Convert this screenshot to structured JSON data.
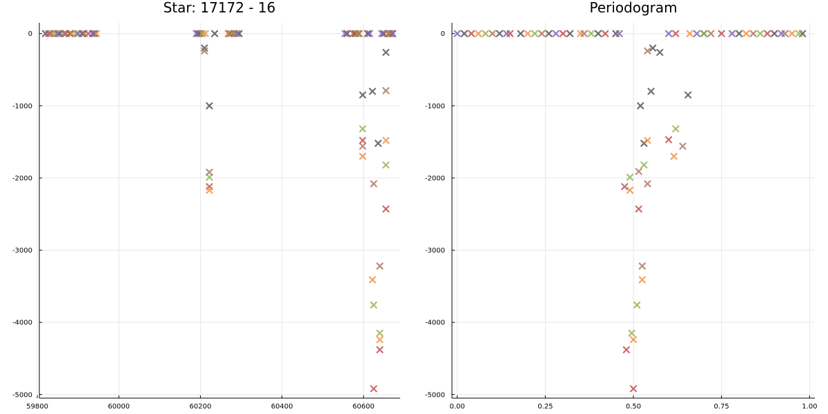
{
  "chart_data": [
    {
      "type": "scatter",
      "title": "Star: 17172 - 16",
      "xlabel": "",
      "ylabel": "",
      "xlim": [
        59805,
        60690
      ],
      "ylim": [
        -5050,
        150
      ],
      "xticks": [
        59800,
        60000,
        60200,
        60400,
        60600
      ],
      "xtick_labels": [
        "59800",
        "60000",
        "60200",
        "60400",
        "60600"
      ],
      "yticks": [
        0,
        -1000,
        -2000,
        -3000,
        -4000,
        -5000
      ],
      "ytick_labels": [
        "0",
        "-1000",
        "-2000",
        "-3000",
        "-4000",
        "-5000"
      ],
      "grid": true,
      "legend": "none",
      "marker": "x",
      "series": [
        {
          "color": "#4b4b4b",
          "points": [
            [
              59820,
              0
            ],
            [
              59855,
              0
            ],
            [
              59880,
              0
            ],
            [
              59910,
              0
            ],
            [
              59940,
              0
            ],
            [
              60195,
              0
            ],
            [
              60210,
              -200
            ],
            [
              60222,
              -1000
            ],
            [
              60235,
              0
            ],
            [
              60270,
              0
            ],
            [
              60295,
              0
            ],
            [
              60560,
              0
            ],
            [
              60580,
              0
            ],
            [
              60598,
              -850
            ],
            [
              60610,
              0
            ],
            [
              60622,
              -800
            ],
            [
              60636,
              -1520
            ],
            [
              60650,
              0
            ],
            [
              60655,
              -260
            ],
            [
              60670,
              0
            ]
          ]
        },
        {
          "color": "#c04545",
          "points": [
            [
              59828,
              0
            ],
            [
              59870,
              0
            ],
            [
              59925,
              0
            ],
            [
              60200,
              0
            ],
            [
              60222,
              -2120
            ],
            [
              60282,
              0
            ],
            [
              60575,
              0
            ],
            [
              60598,
              -1480
            ],
            [
              60625,
              -4920
            ],
            [
              60640,
              -4380
            ],
            [
              60655,
              -2430
            ],
            [
              60665,
              0
            ]
          ]
        },
        {
          "color": "#f08c3c",
          "points": [
            [
              59838,
              0
            ],
            [
              59885,
              0
            ],
            [
              59945,
              0
            ],
            [
              60212,
              0
            ],
            [
              60222,
              -2170
            ],
            [
              60268,
              0
            ],
            [
              60590,
              0
            ],
            [
              60598,
              -1700
            ],
            [
              60622,
              -3410
            ],
            [
              60640,
              -4240
            ],
            [
              60655,
              -1480
            ],
            [
              60660,
              0
            ]
          ]
        },
        {
          "color": "#8fb04e",
          "points": [
            [
              59845,
              0
            ],
            [
              59895,
              0
            ],
            [
              60205,
              0
            ],
            [
              60222,
              -1990
            ],
            [
              60285,
              0
            ],
            [
              60585,
              0
            ],
            [
              60598,
              -1320
            ],
            [
              60625,
              -3760
            ],
            [
              60640,
              -4150
            ],
            [
              60655,
              -1820
            ],
            [
              60668,
              0
            ]
          ]
        },
        {
          "color": "#a8705a",
          "points": [
            [
              59832,
              0
            ],
            [
              59865,
              0
            ],
            [
              59915,
              0
            ],
            [
              60210,
              -240
            ],
            [
              60222,
              -1920
            ],
            [
              60275,
              0
            ],
            [
              60588,
              0
            ],
            [
              60598,
              -1560
            ],
            [
              60625,
              -2080
            ],
            [
              60640,
              -3220
            ],
            [
              60655,
              -790
            ],
            [
              60662,
              0
            ]
          ]
        },
        {
          "color": "#7a5fb0",
          "points": [
            [
              59850,
              0
            ],
            [
              59900,
              0
            ],
            [
              59935,
              0
            ],
            [
              60190,
              0
            ],
            [
              60290,
              0
            ],
            [
              60555,
              0
            ],
            [
              60615,
              0
            ],
            [
              60645,
              0
            ],
            [
              60672,
              0
            ]
          ]
        }
      ]
    },
    {
      "type": "scatter",
      "title": "Periodogram",
      "xlabel": "",
      "ylabel": "",
      "xlim": [
        -0.015,
        1.015
      ],
      "ylim": [
        -5050,
        150
      ],
      "xticks": [
        0,
        0.25,
        0.5,
        0.75,
        1.0
      ],
      "xtick_labels": [
        "0.00",
        "0.25",
        "0.50",
        "0.75",
        "1.00"
      ],
      "yticks": [
        0,
        -1000,
        -2000,
        -3000,
        -4000,
        -5000
      ],
      "ytick_labels": [
        "0",
        "-1000",
        "-2000",
        "-3000",
        "-4000",
        "-5000"
      ],
      "grid": true,
      "legend": "none",
      "marker": "x",
      "series": [
        {
          "color": "#4b4b4b",
          "points": [
            [
              0.02,
              0
            ],
            [
              0.12,
              0
            ],
            [
              0.18,
              0
            ],
            [
              0.26,
              0
            ],
            [
              0.32,
              0
            ],
            [
              0.4,
              0
            ],
            [
              0.45,
              0
            ],
            [
              0.52,
              -1000
            ],
            [
              0.53,
              -1520
            ],
            [
              0.55,
              -800
            ],
            [
              0.555,
              -200
            ],
            [
              0.575,
              -260
            ],
            [
              0.655,
              -850
            ],
            [
              0.7,
              0
            ],
            [
              0.8,
              0
            ],
            [
              0.9,
              0
            ],
            [
              0.98,
              0
            ]
          ]
        },
        {
          "color": "#c04545",
          "points": [
            [
              0.04,
              0
            ],
            [
              0.15,
              0
            ],
            [
              0.3,
              0
            ],
            [
              0.42,
              0
            ],
            [
              0.475,
              -2120
            ],
            [
              0.48,
              -4380
            ],
            [
              0.5,
              -4920
            ],
            [
              0.515,
              -2430
            ],
            [
              0.6,
              -1470
            ],
            [
              0.62,
              0
            ],
            [
              0.75,
              0
            ],
            [
              0.88,
              0
            ]
          ]
        },
        {
          "color": "#f08c3c",
          "points": [
            [
              0.06,
              0
            ],
            [
              0.2,
              0
            ],
            [
              0.35,
              0
            ],
            [
              0.49,
              -2170
            ],
            [
              0.5,
              -4240
            ],
            [
              0.525,
              -3410
            ],
            [
              0.54,
              -1480
            ],
            [
              0.615,
              -1700
            ],
            [
              0.66,
              0
            ],
            [
              0.82,
              0
            ],
            [
              0.95,
              0
            ]
          ]
        },
        {
          "color": "#8fb04e",
          "points": [
            [
              0.08,
              0
            ],
            [
              0.22,
              0
            ],
            [
              0.38,
              0
            ],
            [
              0.49,
              -1990
            ],
            [
              0.495,
              -4150
            ],
            [
              0.51,
              -3760
            ],
            [
              0.53,
              -1820
            ],
            [
              0.62,
              -1320
            ],
            [
              0.7,
              0
            ],
            [
              0.86,
              0
            ],
            [
              0.97,
              0
            ]
          ]
        },
        {
          "color": "#a8705a",
          "points": [
            [
              0.1,
              0
            ],
            [
              0.24,
              0
            ],
            [
              0.36,
              0
            ],
            [
              0.515,
              -1910
            ],
            [
              0.525,
              -3220
            ],
            [
              0.54,
              -2080
            ],
            [
              0.54,
              -240
            ],
            [
              0.64,
              -1560
            ],
            [
              0.72,
              0
            ],
            [
              0.84,
              0
            ],
            [
              0.93,
              0
            ]
          ]
        },
        {
          "color": "#7a5fb0",
          "points": [
            [
              0.0,
              0
            ],
            [
              0.14,
              0
            ],
            [
              0.28,
              0
            ],
            [
              0.46,
              0
            ],
            [
              0.6,
              0
            ],
            [
              0.68,
              0
            ],
            [
              0.78,
              0
            ],
            [
              0.92,
              0
            ]
          ]
        }
      ]
    }
  ]
}
